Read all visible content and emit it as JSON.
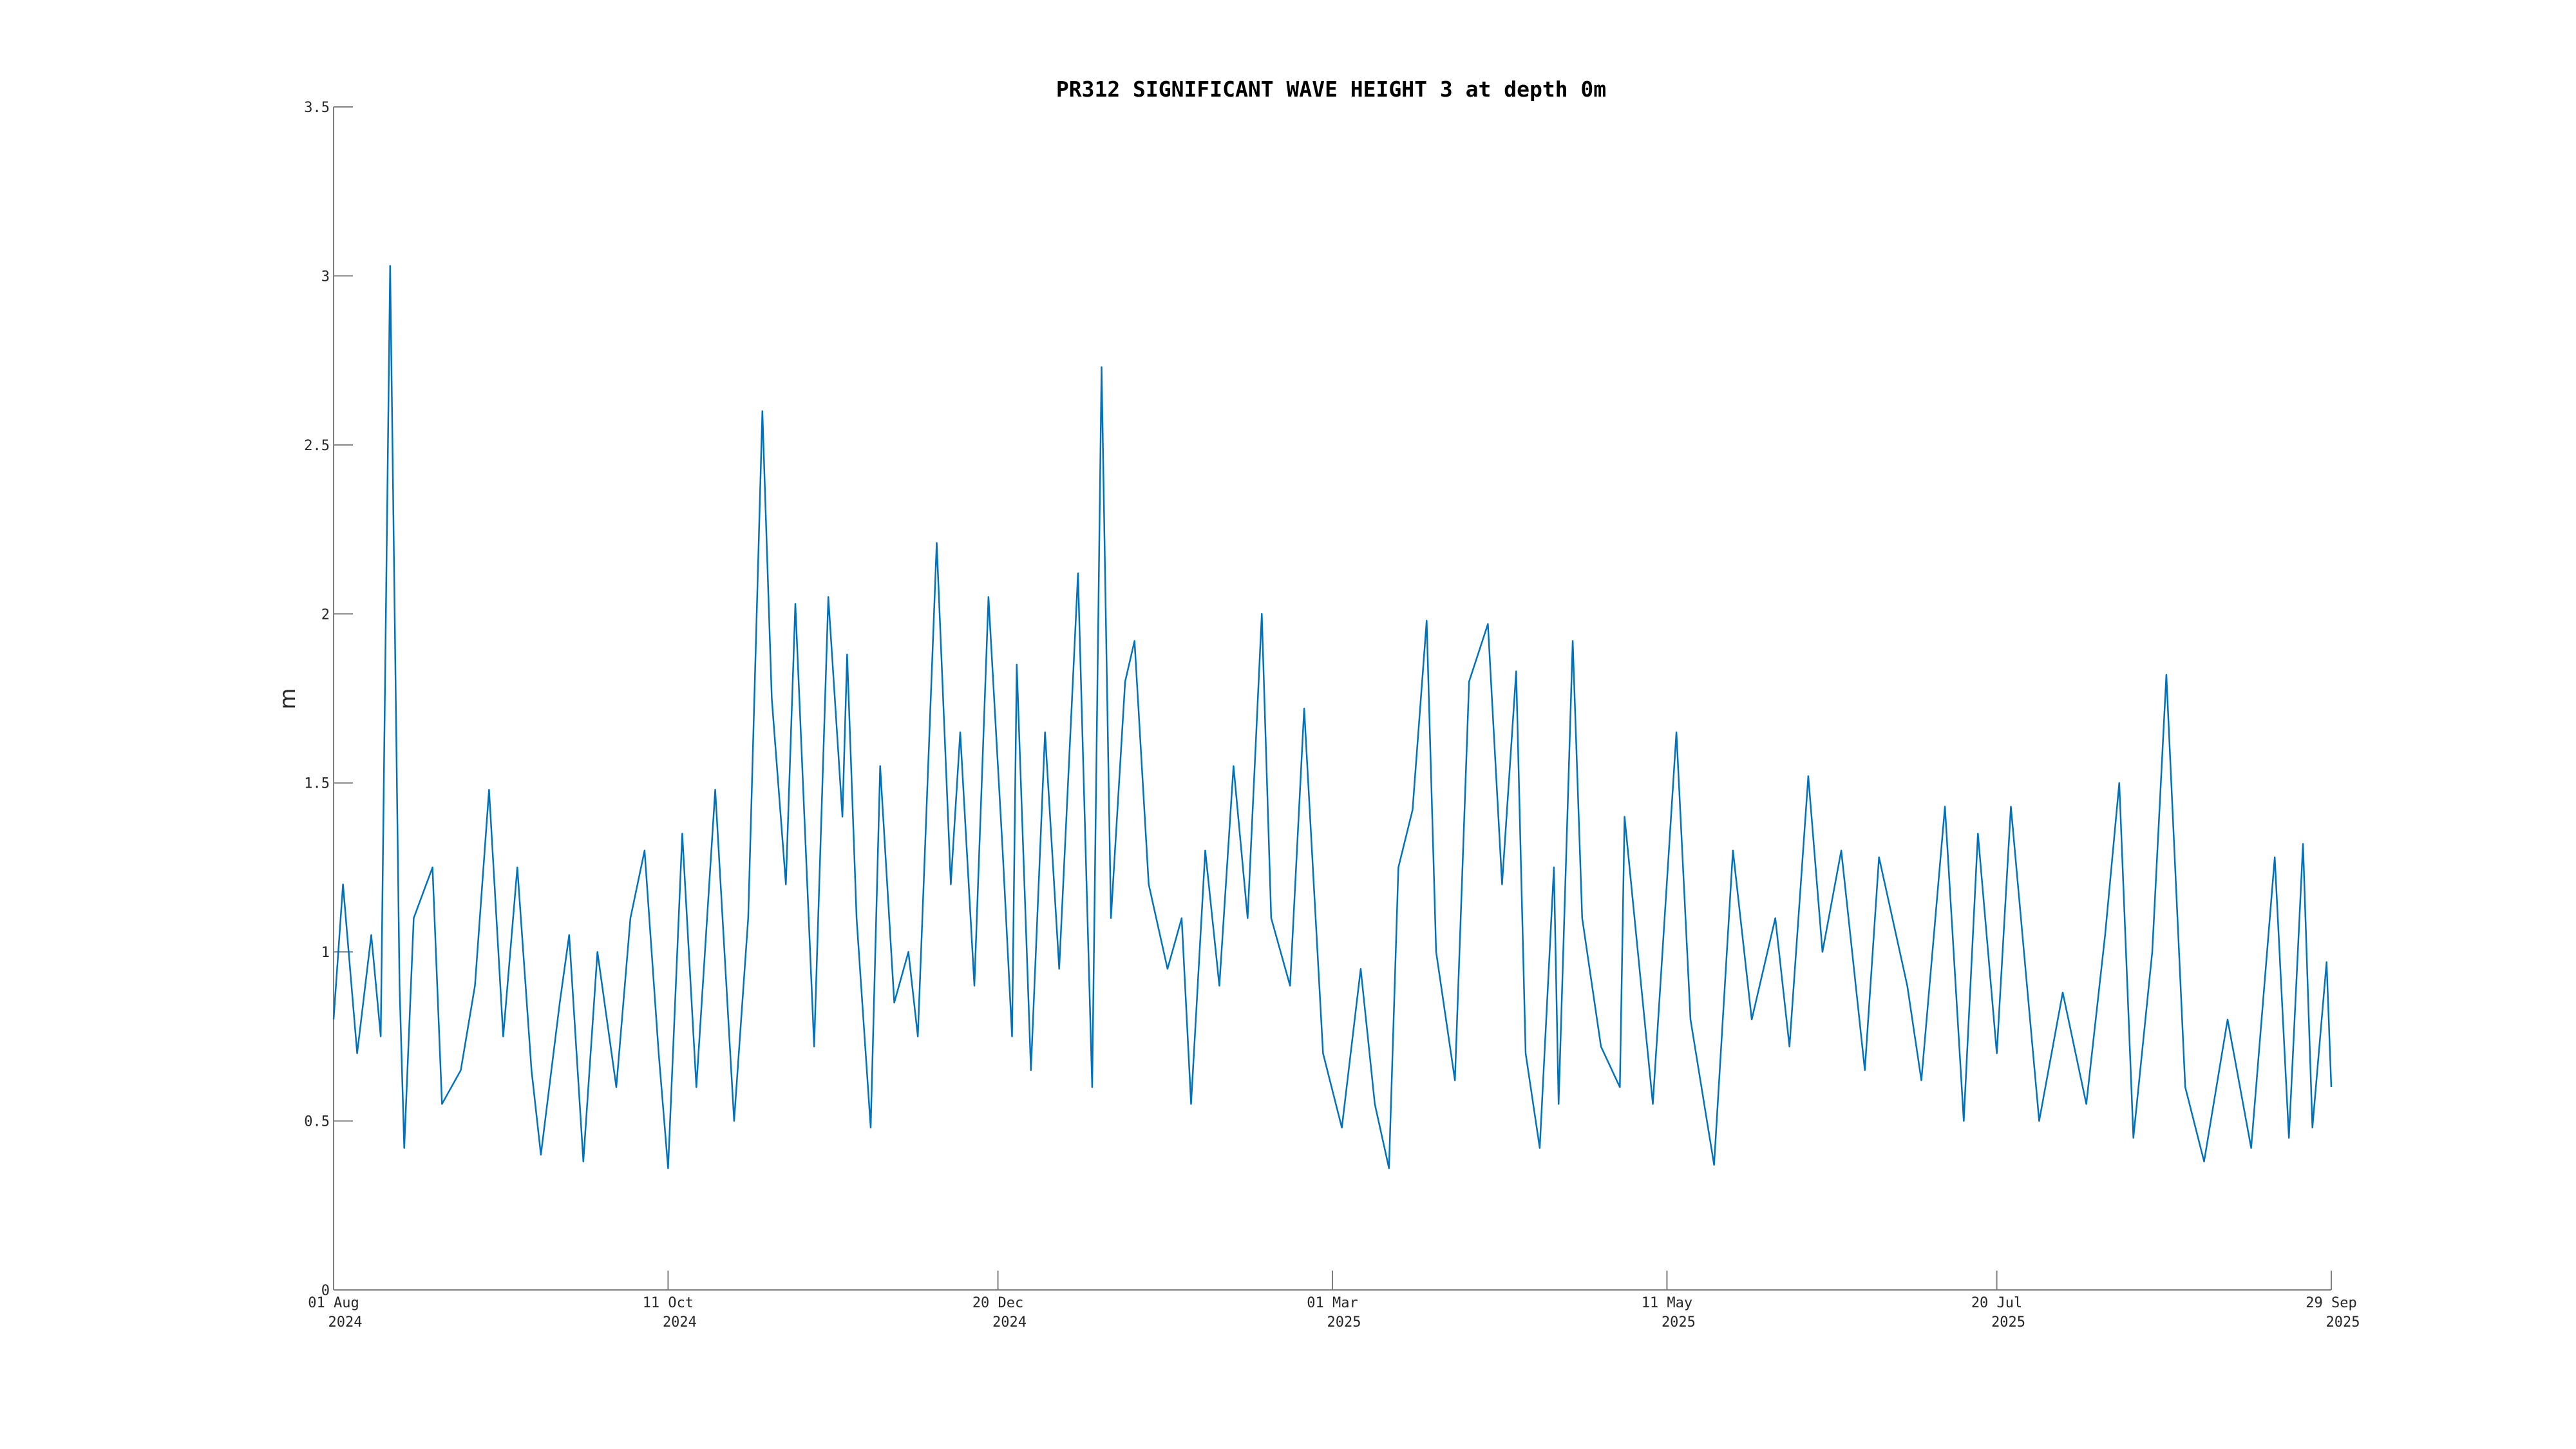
{
  "chart_data": {
    "type": "line",
    "title": "PR312 SIGNIFICANT WAVE HEIGHT 3 at depth 0m",
    "y_label": "m",
    "x": [
      "2024-08-01",
      "2024-08-03",
      "2024-08-06",
      "2024-08-09",
      "2024-08-11",
      "2024-08-13",
      "2024-08-15",
      "2024-08-16",
      "2024-08-18",
      "2024-08-22",
      "2024-08-24",
      "2024-08-28",
      "2024-08-31",
      "2024-09-03",
      "2024-09-06",
      "2024-09-09",
      "2024-09-12",
      "2024-09-14",
      "2024-09-18",
      "2024-09-20",
      "2024-09-23",
      "2024-09-26",
      "2024-09-30",
      "2024-10-03",
      "2024-10-06",
      "2024-10-09",
      "2024-10-11",
      "2024-10-14",
      "2024-10-17",
      "2024-10-21",
      "2024-10-25",
      "2024-10-28",
      "2024-10-31",
      "2024-11-02",
      "2024-11-05",
      "2024-11-07",
      "2024-11-11",
      "2024-11-14",
      "2024-11-17",
      "2024-11-18",
      "2024-11-20",
      "2024-11-23",
      "2024-11-25",
      "2024-11-28",
      "2024-12-01",
      "2024-12-03",
      "2024-12-07",
      "2024-12-10",
      "2024-12-12",
      "2024-12-15",
      "2024-12-18",
      "2024-12-21",
      "2024-12-23",
      "2024-12-24",
      "2024-12-27",
      "2024-12-30",
      "2025-01-02",
      "2025-01-06",
      "2025-01-09",
      "2025-01-11",
      "2025-01-13",
      "2025-01-16",
      "2025-01-18",
      "2025-01-21",
      "2025-01-25",
      "2025-01-28",
      "2025-01-30",
      "2025-02-02",
      "2025-02-05",
      "2025-02-08",
      "2025-02-11",
      "2025-02-14",
      "2025-02-16",
      "2025-02-20",
      "2025-02-23",
      "2025-02-27",
      "2025-03-03",
      "2025-03-07",
      "2025-03-10",
      "2025-03-13",
      "2025-03-15",
      "2025-03-18",
      "2025-03-21",
      "2025-03-23",
      "2025-03-27",
      "2025-03-30",
      "2025-04-03",
      "2025-04-06",
      "2025-04-09",
      "2025-04-11",
      "2025-04-14",
      "2025-04-17",
      "2025-04-18",
      "2025-04-21",
      "2025-04-23",
      "2025-04-27",
      "2025-05-01",
      "2025-05-02",
      "2025-05-08",
      "2025-05-13",
      "2025-05-16",
      "2025-05-21",
      "2025-05-25",
      "2025-05-29",
      "2025-06-03",
      "2025-06-06",
      "2025-06-10",
      "2025-06-13",
      "2025-06-17",
      "2025-06-22",
      "2025-06-25",
      "2025-07-01",
      "2025-07-04",
      "2025-07-09",
      "2025-07-13",
      "2025-07-16",
      "2025-07-20",
      "2025-07-23",
      "2025-07-29",
      "2025-08-03",
      "2025-08-08",
      "2025-08-12",
      "2025-08-15",
      "2025-08-18",
      "2025-08-22",
      "2025-08-25",
      "2025-08-29",
      "2025-09-02",
      "2025-09-07",
      "2025-09-12",
      "2025-09-17",
      "2025-09-20",
      "2025-09-23",
      "2025-09-25",
      "2025-09-28",
      "2025-09-29"
    ],
    "series": [
      {
        "color": "#0072bd",
        "values": [
          0.8,
          1.2,
          0.7,
          1.05,
          0.75,
          3.03,
          0.9,
          0.42,
          1.1,
          1.25,
          0.55,
          0.65,
          0.9,
          1.48,
          0.75,
          1.25,
          0.65,
          0.4,
          0.85,
          1.05,
          0.38,
          1.0,
          0.6,
          1.1,
          1.3,
          0.7,
          0.36,
          1.35,
          0.6,
          1.48,
          0.5,
          1.1,
          2.6,
          1.75,
          1.2,
          2.03,
          0.72,
          2.05,
          1.4,
          1.88,
          1.1,
          0.48,
          1.55,
          0.85,
          1.0,
          0.75,
          2.21,
          1.2,
          1.65,
          0.9,
          2.05,
          1.3,
          0.75,
          1.85,
          0.65,
          1.65,
          0.95,
          2.12,
          0.6,
          2.73,
          1.1,
          1.8,
          1.92,
          1.2,
          0.95,
          1.1,
          0.55,
          1.3,
          0.9,
          1.55,
          1.1,
          2.0,
          1.1,
          0.9,
          1.72,
          0.7,
          0.48,
          0.95,
          0.55,
          0.36,
          1.25,
          1.42,
          1.98,
          1.0,
          0.62,
          1.8,
          1.97,
          1.2,
          1.83,
          0.7,
          0.42,
          1.25,
          0.55,
          1.92,
          1.1,
          0.72,
          0.6,
          1.4,
          0.55,
          1.65,
          0.8,
          0.37,
          1.3,
          0.8,
          1.1,
          0.72,
          1.52,
          1.0,
          1.3,
          0.65,
          1.28,
          0.9,
          0.62,
          1.43,
          0.5,
          1.35,
          0.7,
          1.43,
          0.5,
          0.88,
          0.55,
          1.05,
          1.5,
          0.45,
          1.0,
          1.82,
          0.6,
          0.38,
          0.8,
          0.42,
          1.28,
          0.45,
          1.32,
          0.48,
          0.97,
          0.6
        ]
      }
    ],
    "xlim": [
      "2024-08-01",
      "2025-09-29"
    ],
    "xticks": [
      {
        "value": "2024-08-01",
        "label": [
          "01 Aug",
          "2024"
        ]
      },
      {
        "value": "2024-10-11",
        "label": [
          "11 Oct",
          "2024"
        ]
      },
      {
        "value": "2024-12-20",
        "label": [
          "20 Dec",
          "2024"
        ]
      },
      {
        "value": "2025-03-01",
        "label": [
          "01 Mar",
          "2025"
        ]
      },
      {
        "value": "2025-05-11",
        "label": [
          "11 May",
          "2025"
        ]
      },
      {
        "value": "2025-07-20",
        "label": [
          "20 Jul",
          "2025"
        ]
      },
      {
        "value": "2025-09-29",
        "label": [
          "29 Sep",
          "2025"
        ]
      }
    ],
    "ylim": [
      0,
      3.5
    ],
    "yticks": [
      0,
      0.5,
      1,
      1.5,
      2,
      2.5,
      3,
      3.5
    ],
    "grid": false
  }
}
